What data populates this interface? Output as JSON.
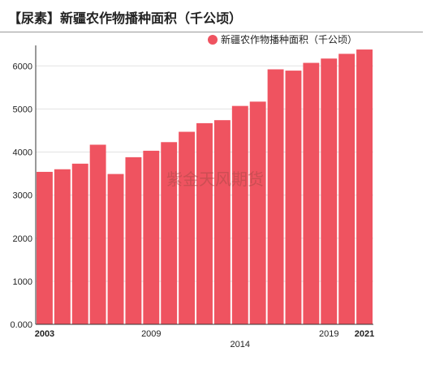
{
  "title": "【尿素】新疆农作物播种面积（千公顷）",
  "watermark": "紫金天风期货",
  "colors": {
    "bar": "#ef5360",
    "grid": "#e3e3e3",
    "axis": "#333333"
  },
  "chart_data": {
    "type": "bar",
    "title": "【尿素】新疆农作物播种面积（千公顷）",
    "categories": [
      "2003",
      "2004",
      "2005",
      "2006",
      "2007",
      "2008",
      "2009",
      "2010",
      "2011",
      "2012",
      "2013",
      "2014",
      "2015",
      "2016",
      "2017",
      "2018",
      "2019",
      "2020",
      "2021"
    ],
    "series": [
      {
        "name": "新疆农作物播种面积（千公顷）",
        "values": [
          3540,
          3600,
          3730,
          4170,
          3490,
          3880,
          4030,
          4230,
          4470,
          4670,
          4740,
          5070,
          5170,
          5920,
          5890,
          6070,
          6170,
          6280,
          6380
        ]
      }
    ],
    "ylim": [
      0,
      6400
    ],
    "yticks": [
      "0.000",
      "1000",
      "2000",
      "3000",
      "4000",
      "5000",
      "6000"
    ],
    "ytick_values": [
      0,
      1000,
      2000,
      3000,
      4000,
      5000,
      6000
    ],
    "xtick_labels": [
      {
        "label": "2003",
        "index": 0,
        "row": 1,
        "bold": true
      },
      {
        "label": "2009",
        "index": 6,
        "row": 1,
        "bold": false
      },
      {
        "label": "2014",
        "index": 11,
        "row": 2,
        "bold": false
      },
      {
        "label": "2019",
        "index": 16,
        "row": 1,
        "bold": false
      },
      {
        "label": "2021",
        "index": 18,
        "row": 1,
        "bold": true
      }
    ],
    "legend_position": "top-right",
    "grid": true
  }
}
